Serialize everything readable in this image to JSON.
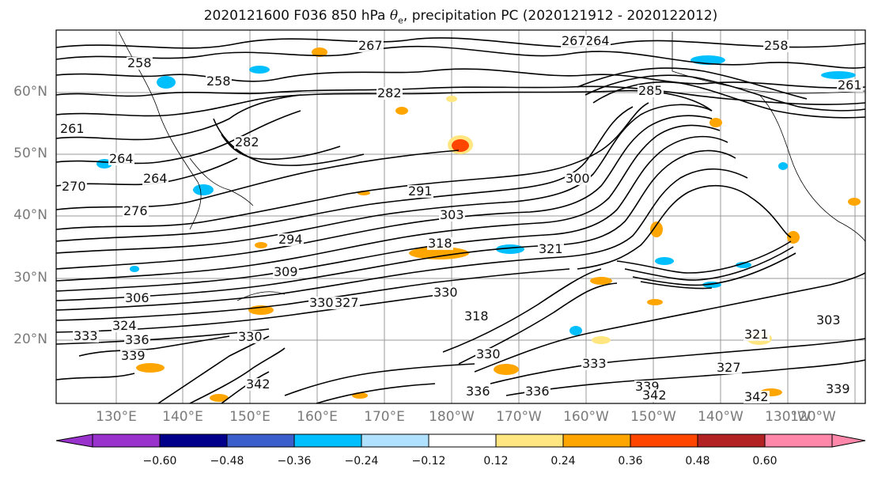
{
  "title": {
    "prefix": "2020121600 F036 850 hPa",
    "variable": "θ",
    "subscript": "e",
    "suffix": ", precipitation PC (2020121912 - 2020122012)"
  },
  "lat_labels": [
    "60°N",
    "50°N",
    "40°N",
    "30°N",
    "20°N"
  ],
  "lon_labels": [
    "130°E",
    "140°E",
    "150°E",
    "160°E",
    "170°E",
    "180°W",
    "170°W",
    "160°W",
    "150°W",
    "140°W",
    "130°W",
    "120°W"
  ],
  "contour_labels": [
    "258",
    "267",
    "258",
    "264",
    "267",
    "282",
    "285",
    "258",
    "261",
    "261",
    "264",
    "282",
    "270",
    "276",
    "264",
    "291",
    "300",
    "303",
    "294",
    "309",
    "318",
    "321",
    "330",
    "306",
    "324",
    "333",
    "336",
    "339",
    "330",
    "327",
    "330",
    "333",
    "336",
    "339",
    "342",
    "303",
    "318",
    "321",
    "342",
    "327",
    "342",
    "330",
    "336",
    "339"
  ],
  "colorbar": {
    "ticks": [
      "−0.60",
      "−0.48",
      "−0.36",
      "−0.24",
      "−0.12",
      "0.12",
      "0.24",
      "0.36",
      "0.48",
      "0.60"
    ],
    "colors": [
      "#9932CC",
      "#00008B",
      "#3A5FCD",
      "#00BFFF",
      "#B0E2FF",
      "#FFFFFF",
      "#FFE680",
      "#FFA500",
      "#FF4500",
      "#B22222",
      "#FF88AA"
    ]
  }
}
